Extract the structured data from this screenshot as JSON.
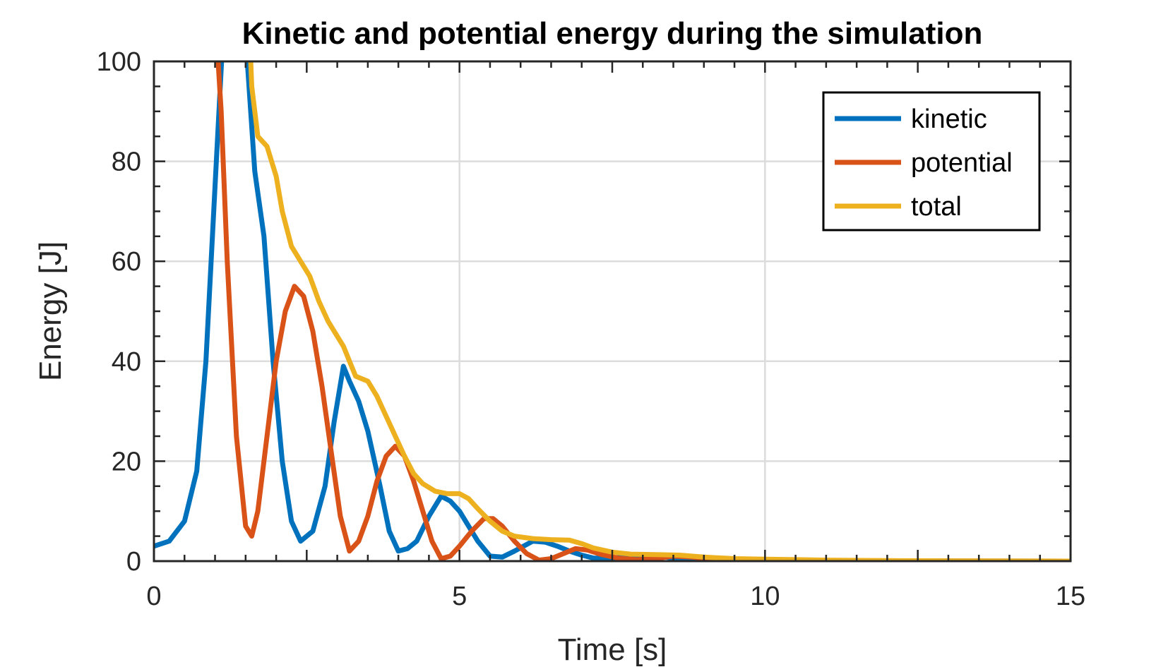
{
  "chart_data": {
    "type": "line",
    "title": "Kinetic and potential energy during the simulation",
    "xlabel": "Time [s]",
    "ylabel": "Energy [J]",
    "xlim": [
      0,
      15
    ],
    "ylim": [
      0,
      100
    ],
    "xticks": [
      0,
      5,
      10,
      15
    ],
    "yticks": [
      0,
      20,
      40,
      60,
      80,
      100
    ],
    "xtick_labels": [
      "0",
      "5",
      "10",
      "15"
    ],
    "ytick_labels": [
      "0",
      "20",
      "40",
      "60",
      "80",
      "100"
    ],
    "grid": true,
    "legend_position": "top-right",
    "series": [
      {
        "name": "kinetic",
        "color": "#0072BD",
        "points": [
          [
            0,
            3
          ],
          [
            0.25,
            4
          ],
          [
            0.5,
            8
          ],
          [
            0.7,
            18
          ],
          [
            0.85,
            40
          ],
          [
            1.0,
            75
          ],
          [
            1.15,
            110
          ],
          [
            1.3,
            110
          ],
          [
            1.5,
            105
          ],
          [
            1.65,
            78
          ],
          [
            1.8,
            65
          ],
          [
            1.95,
            40
          ],
          [
            2.1,
            20
          ],
          [
            2.25,
            8
          ],
          [
            2.4,
            4
          ],
          [
            2.6,
            6
          ],
          [
            2.8,
            15
          ],
          [
            2.95,
            28
          ],
          [
            3.1,
            39
          ],
          [
            3.2,
            36
          ],
          [
            3.35,
            32
          ],
          [
            3.5,
            26
          ],
          [
            3.7,
            15
          ],
          [
            3.85,
            6
          ],
          [
            4.0,
            2
          ],
          [
            4.15,
            2.5
          ],
          [
            4.3,
            4
          ],
          [
            4.5,
            9
          ],
          [
            4.7,
            13
          ],
          [
            4.85,
            12
          ],
          [
            5.0,
            10
          ],
          [
            5.15,
            7
          ],
          [
            5.3,
            4
          ],
          [
            5.5,
            1
          ],
          [
            5.7,
            0.8
          ],
          [
            5.9,
            2
          ],
          [
            6.2,
            4
          ],
          [
            6.4,
            3.8
          ],
          [
            6.6,
            3
          ],
          [
            6.8,
            2
          ],
          [
            7.0,
            1.2
          ],
          [
            7.2,
            0.6
          ],
          [
            7.5,
            0.6
          ],
          [
            7.8,
            1
          ],
          [
            8.2,
            1
          ],
          [
            8.6,
            0.5
          ],
          [
            9.2,
            0.3
          ],
          [
            10,
            0.2
          ],
          [
            12,
            0.05
          ],
          [
            15,
            0
          ]
        ]
      },
      {
        "name": "potential",
        "color": "#D95319",
        "points": [
          [
            1.0,
            110
          ],
          [
            1.1,
            90
          ],
          [
            1.2,
            60
          ],
          [
            1.35,
            25
          ],
          [
            1.5,
            7
          ],
          [
            1.6,
            5
          ],
          [
            1.7,
            10
          ],
          [
            1.85,
            25
          ],
          [
            2.0,
            40
          ],
          [
            2.15,
            50
          ],
          [
            2.3,
            55
          ],
          [
            2.45,
            53
          ],
          [
            2.6,
            46
          ],
          [
            2.75,
            35
          ],
          [
            2.9,
            22
          ],
          [
            3.05,
            9
          ],
          [
            3.2,
            2
          ],
          [
            3.35,
            4
          ],
          [
            3.5,
            9
          ],
          [
            3.65,
            16
          ],
          [
            3.8,
            21
          ],
          [
            3.95,
            23
          ],
          [
            4.1,
            21
          ],
          [
            4.25,
            16
          ],
          [
            4.4,
            10
          ],
          [
            4.55,
            4
          ],
          [
            4.7,
            0.5
          ],
          [
            4.85,
            1
          ],
          [
            5.0,
            3
          ],
          [
            5.2,
            6
          ],
          [
            5.4,
            8.5
          ],
          [
            5.55,
            8.5
          ],
          [
            5.7,
            7
          ],
          [
            5.9,
            4
          ],
          [
            6.1,
            1.5
          ],
          [
            6.3,
            0.2
          ],
          [
            6.5,
            0.5
          ],
          [
            6.7,
            1.5
          ],
          [
            6.9,
            2.5
          ],
          [
            7.1,
            2.2
          ],
          [
            7.3,
            1.4
          ],
          [
            7.6,
            0.6
          ],
          [
            7.9,
            0.3
          ],
          [
            8.2,
            0.5
          ],
          [
            8.5,
            1
          ],
          [
            8.8,
            0.8
          ],
          [
            9.2,
            0.4
          ],
          [
            10,
            0.2
          ],
          [
            12,
            0.05
          ],
          [
            15,
            0
          ]
        ]
      },
      {
        "name": "total",
        "color": "#EDB120",
        "points": [
          [
            1.55,
            110
          ],
          [
            1.6,
            95
          ],
          [
            1.7,
            85
          ],
          [
            1.85,
            83
          ],
          [
            2.0,
            77
          ],
          [
            2.1,
            70
          ],
          [
            2.25,
            63
          ],
          [
            2.4,
            60
          ],
          [
            2.55,
            57
          ],
          [
            2.7,
            52
          ],
          [
            2.85,
            48
          ],
          [
            3.0,
            45
          ],
          [
            3.1,
            43
          ],
          [
            3.2,
            40
          ],
          [
            3.3,
            37
          ],
          [
            3.5,
            36
          ],
          [
            3.65,
            33
          ],
          [
            3.8,
            29
          ],
          [
            3.95,
            25
          ],
          [
            4.1,
            21
          ],
          [
            4.25,
            17.5
          ],
          [
            4.4,
            15.5
          ],
          [
            4.6,
            14
          ],
          [
            4.8,
            13.5
          ],
          [
            5.0,
            13.5
          ],
          [
            5.15,
            12.5
          ],
          [
            5.3,
            10.5
          ],
          [
            5.5,
            8
          ],
          [
            5.7,
            6
          ],
          [
            5.9,
            5
          ],
          [
            6.2,
            4.5
          ],
          [
            6.5,
            4.3
          ],
          [
            6.8,
            4.2
          ],
          [
            7.0,
            3.5
          ],
          [
            7.2,
            2.6
          ],
          [
            7.5,
            1.8
          ],
          [
            7.8,
            1.4
          ],
          [
            8.2,
            1.3
          ],
          [
            8.6,
            1.2
          ],
          [
            9.0,
            0.8
          ],
          [
            9.5,
            0.5
          ],
          [
            10,
            0.4
          ],
          [
            11,
            0.2
          ],
          [
            12,
            0.1
          ],
          [
            13,
            0.05
          ],
          [
            15,
            0
          ]
        ]
      }
    ]
  }
}
